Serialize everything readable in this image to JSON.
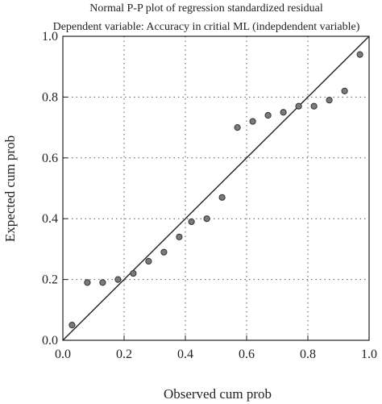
{
  "chart_data": {
    "type": "scatter",
    "title": "Normal P-P plot of regression standardized residual",
    "subtitle": "Dependent variable: Accuracy in critial ML (indepdendent variable)",
    "xlabel": "Observed cum prob",
    "ylabel": "Expected cum prob",
    "xlim": [
      0,
      1
    ],
    "ylim": [
      0,
      1
    ],
    "xticks": [
      0.0,
      0.2,
      0.4,
      0.6,
      0.8,
      1.0
    ],
    "yticks": [
      0.0,
      0.2,
      0.4,
      0.6,
      0.8,
      1.0
    ],
    "xtick_labels": [
      "0.0",
      "0.2",
      "0.4",
      "0.6",
      "0.8",
      "1.0"
    ],
    "ytick_labels": [
      "0.0",
      "0.2",
      "0.4",
      "0.6",
      "0.8",
      "1.0"
    ],
    "grid": "dotted",
    "reference_line": [
      [
        0,
        0
      ],
      [
        1,
        1
      ]
    ],
    "x": [
      0.03,
      0.08,
      0.13,
      0.18,
      0.23,
      0.28,
      0.33,
      0.38,
      0.42,
      0.47,
      0.52,
      0.57,
      0.62,
      0.67,
      0.72,
      0.77,
      0.82,
      0.87,
      0.92,
      0.97
    ],
    "y": [
      0.05,
      0.19,
      0.19,
      0.2,
      0.22,
      0.26,
      0.29,
      0.34,
      0.39,
      0.4,
      0.47,
      0.7,
      0.72,
      0.74,
      0.75,
      0.77,
      0.77,
      0.79,
      0.82,
      0.94
    ],
    "colors": {
      "point_fill": "#7a7a7a",
      "point_stroke": "#333333",
      "line": "#222222",
      "grid": "#555555"
    }
  }
}
